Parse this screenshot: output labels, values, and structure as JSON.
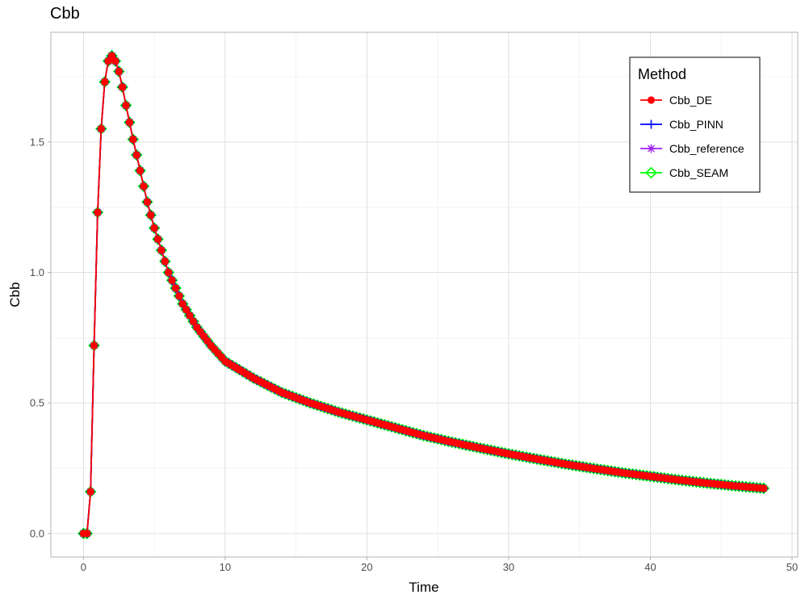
{
  "chart_data": {
    "type": "line",
    "title": "Cbb",
    "xlabel": "Time",
    "ylabel": "Cbb",
    "xlim": [
      -2.3,
      50.4
    ],
    "ylim": [
      -0.09,
      1.92
    ],
    "x_ticks": [
      0,
      10,
      20,
      30,
      40,
      50
    ],
    "y_ticks": [
      0.0,
      0.5,
      1.0,
      1.5
    ],
    "x_tick_labels": [
      "0",
      "10",
      "20",
      "30",
      "40",
      "50"
    ],
    "y_tick_labels": [
      "0.0",
      "0.5",
      "1.0",
      "1.5"
    ],
    "grid": true,
    "legend": {
      "title": "Method",
      "position": "top-right",
      "entries": [
        {
          "label": "Cbb_DE",
          "color": "#ff0000",
          "marker": "circle"
        },
        {
          "label": "Cbb_PINN",
          "color": "#0000ff",
          "marker": "plus"
        },
        {
          "label": "Cbb_reference",
          "color": "#a020f0",
          "marker": "asterisk"
        },
        {
          "label": "Cbb_SEAM",
          "color": "#00ff00",
          "marker": "diamond"
        }
      ]
    },
    "x": [
      0,
      0.25,
      0.5,
      0.75,
      1,
      1.25,
      1.5,
      1.75,
      2,
      2.25,
      2.5,
      2.75,
      3,
      3.5,
      4,
      4.5,
      5,
      6,
      7,
      8,
      9,
      10,
      12,
      14,
      16,
      18,
      20,
      22,
      24,
      26,
      28,
      30,
      32,
      34,
      36,
      38,
      40,
      42,
      44,
      46,
      48
    ],
    "series": [
      {
        "name": "Cbb_DE",
        "values": [
          0.0,
          0.0,
          0.16,
          0.72,
          1.23,
          1.55,
          1.73,
          1.81,
          1.83,
          1.81,
          1.77,
          1.71,
          1.64,
          1.51,
          1.39,
          1.27,
          1.17,
          1.0,
          0.88,
          0.79,
          0.72,
          0.66,
          0.595,
          0.54,
          0.5,
          0.465,
          0.435,
          0.405,
          0.375,
          0.35,
          0.327,
          0.305,
          0.285,
          0.266,
          0.249,
          0.233,
          0.219,
          0.205,
          0.193,
          0.182,
          0.173
        ]
      },
      {
        "name": "Cbb_PINN",
        "values": [
          0.0,
          0.0,
          0.16,
          0.72,
          1.23,
          1.55,
          1.73,
          1.81,
          1.83,
          1.81,
          1.77,
          1.71,
          1.64,
          1.51,
          1.39,
          1.27,
          1.17,
          1.0,
          0.88,
          0.79,
          0.72,
          0.66,
          0.595,
          0.54,
          0.5,
          0.465,
          0.435,
          0.405,
          0.375,
          0.35,
          0.327,
          0.305,
          0.285,
          0.266,
          0.249,
          0.233,
          0.219,
          0.205,
          0.193,
          0.182,
          0.173
        ]
      },
      {
        "name": "Cbb_reference",
        "values": [
          0.0,
          0.0,
          0.16,
          0.72,
          1.23,
          1.55,
          1.73,
          1.81,
          1.83,
          1.81,
          1.77,
          1.71,
          1.64,
          1.51,
          1.39,
          1.27,
          1.17,
          1.0,
          0.88,
          0.79,
          0.72,
          0.66,
          0.595,
          0.54,
          0.5,
          0.465,
          0.435,
          0.405,
          0.375,
          0.35,
          0.327,
          0.305,
          0.285,
          0.266,
          0.249,
          0.233,
          0.219,
          0.205,
          0.193,
          0.182,
          0.173
        ]
      },
      {
        "name": "Cbb_SEAM",
        "values": [
          0.0,
          0.0,
          0.16,
          0.72,
          1.23,
          1.55,
          1.73,
          1.81,
          1.83,
          1.81,
          1.77,
          1.71,
          1.64,
          1.51,
          1.39,
          1.27,
          1.17,
          1.0,
          0.88,
          0.79,
          0.72,
          0.66,
          0.595,
          0.54,
          0.5,
          0.465,
          0.435,
          0.405,
          0.375,
          0.35,
          0.327,
          0.305,
          0.285,
          0.266,
          0.249,
          0.233,
          0.219,
          0.205,
          0.193,
          0.182,
          0.173
        ]
      }
    ]
  }
}
